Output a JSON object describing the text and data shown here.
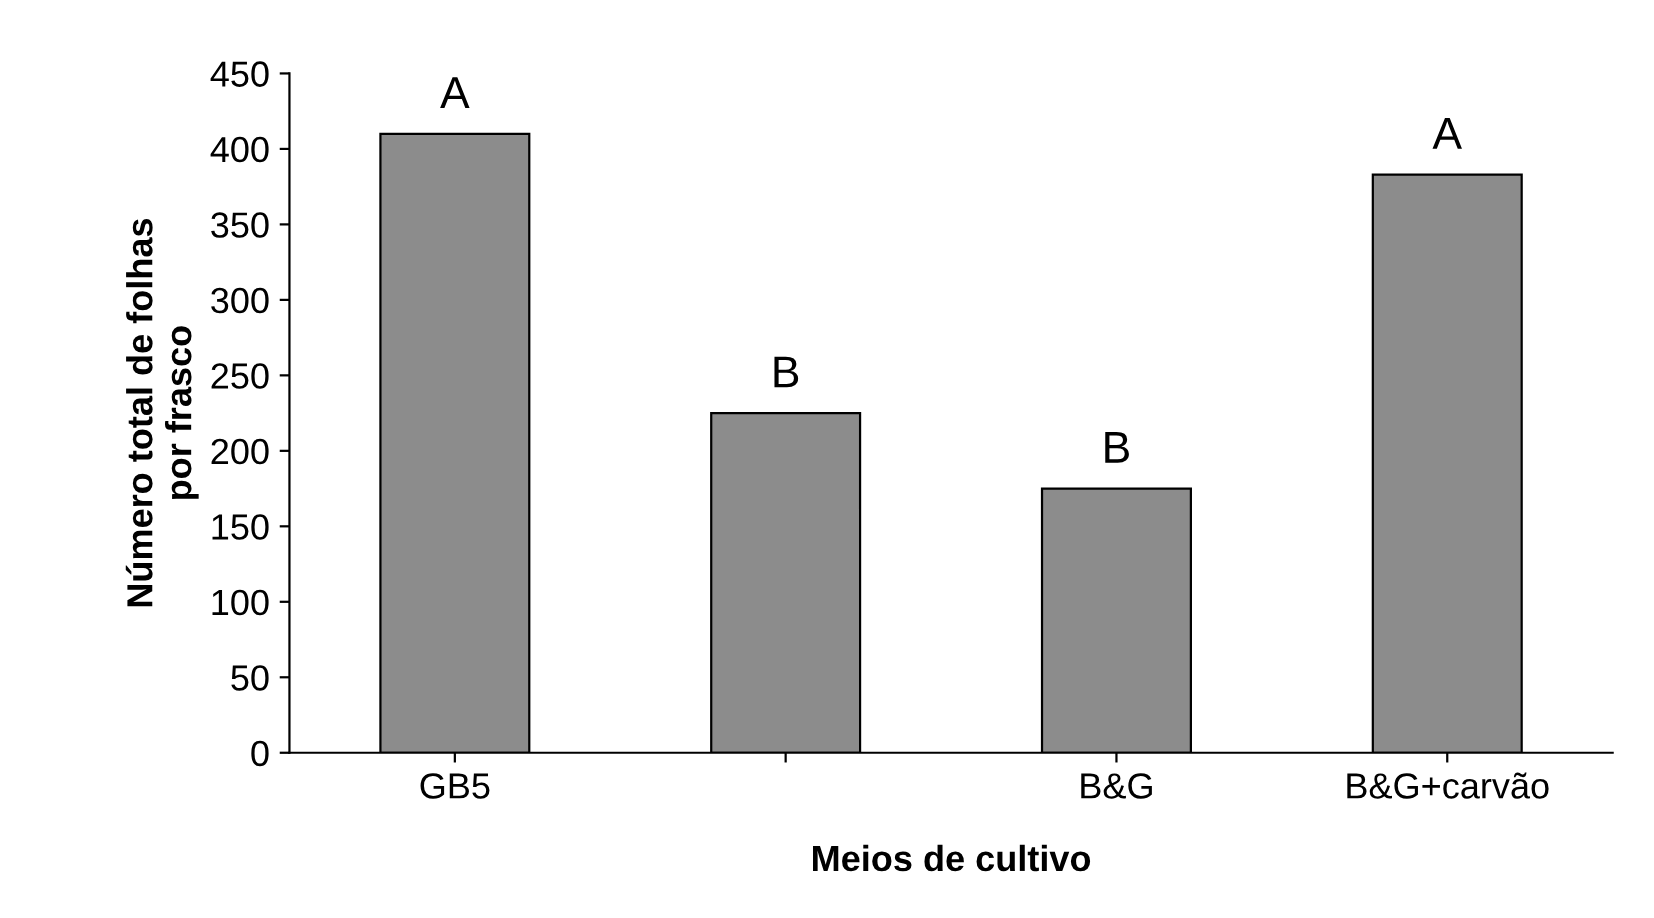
{
  "chart_data": {
    "type": "bar",
    "xlabel": "Meios de cultivo",
    "ylabel": "Número total de folhas\npor frasco",
    "categories": [
      "GB5",
      null,
      "B&G",
      "B&G+carvão"
    ],
    "values": [
      410,
      225,
      175,
      383
    ],
    "color": "#8c8c8c",
    "ylim": [
      0,
      450
    ],
    "yticks": [
      0,
      50,
      100,
      150,
      200,
      250,
      300,
      350,
      400,
      450
    ],
    "grid": false,
    "annotations": [
      "A",
      "B",
      "B",
      "A"
    ]
  }
}
